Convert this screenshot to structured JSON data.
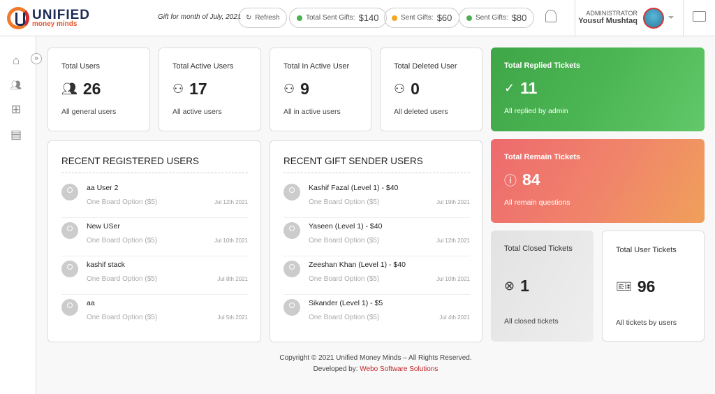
{
  "header": {
    "logo_line1": "UNIFIED",
    "logo_line2": "money minds",
    "gift_month": "Gift for month of July, 2021",
    "refresh": "Refresh",
    "pills": [
      {
        "label": "Total Sent Gifts:",
        "value": "$140",
        "color": "#4caf50"
      },
      {
        "label": "Sent Gifts:",
        "value": "$60",
        "color": "#f5a623"
      },
      {
        "label": "Sent Gifts:",
        "value": "$80",
        "color": "#4caf50"
      }
    ],
    "role": "ADMINISTRATOR",
    "user": "Yousuf Mushtaq"
  },
  "sidebar": {
    "items": [
      "home-icon",
      "users-icon",
      "gift-icon",
      "message-icon"
    ]
  },
  "stats": [
    {
      "title": "Total Users",
      "value": "26",
      "sub": "All general users"
    },
    {
      "title": "Total Active Users",
      "value": "17",
      "sub": "All active users"
    },
    {
      "title": "Total In Active User",
      "value": "9",
      "sub": "All in active users"
    },
    {
      "title": "Total Deleted User",
      "value": "0",
      "sub": "All deleted users"
    }
  ],
  "tickets": [
    {
      "title": "Total Replied Tickets",
      "value": "11",
      "sub": "All replied by admin",
      "color": "#4caf50"
    },
    {
      "title": "Total Remain Tickets",
      "value": "84",
      "sub": "All remain questions",
      "color": "#ef6b6b"
    },
    {
      "title": "Total Closed Tickets",
      "value": "1",
      "sub": "All closed tickets"
    },
    {
      "title": "Total User Tickets",
      "value": "96",
      "sub": "All tickets by users"
    }
  ],
  "recent_users": {
    "title": "RECENT REGISTERED USERS",
    "items": [
      {
        "name": "aa User 2",
        "sub": "One Board Option ($5)",
        "date": "Jul 12th 2021"
      },
      {
        "name": "New USer",
        "sub": "One Board Option ($5)",
        "date": "Jul 10th 2021"
      },
      {
        "name": "kashif stack",
        "sub": "One Board Option ($5)",
        "date": "Jul 8th 2021"
      },
      {
        "name": "aa",
        "sub": "One Board Option ($5)",
        "date": "Jul 5th 2021"
      }
    ]
  },
  "recent_gifts": {
    "title": "RECENT GIFT SENDER USERS",
    "items": [
      {
        "name": "Kashif Fazal (Level 1) - $40",
        "sub": "One Board Option ($5)",
        "date": "Jul 19th 2021"
      },
      {
        "name": "Yaseen (Level 1) - $40",
        "sub": "One Board Option ($5)",
        "date": "Jul 12th 2021"
      },
      {
        "name": "Zeeshan Khan (Level 1) - $40",
        "sub": "One Board Option ($5)",
        "date": "Jul 10th 2021"
      },
      {
        "name": "Sikander (Level 1) - $5",
        "sub": "One Board Option ($5)",
        "date": "Jul 4th 2021"
      }
    ]
  },
  "footer": {
    "copyright": "Copyright © 2021 Unified Money Minds – All Rights Reserved.",
    "dev_prefix": "Developed by:",
    "dev_link": "Webo Software Solutions"
  }
}
